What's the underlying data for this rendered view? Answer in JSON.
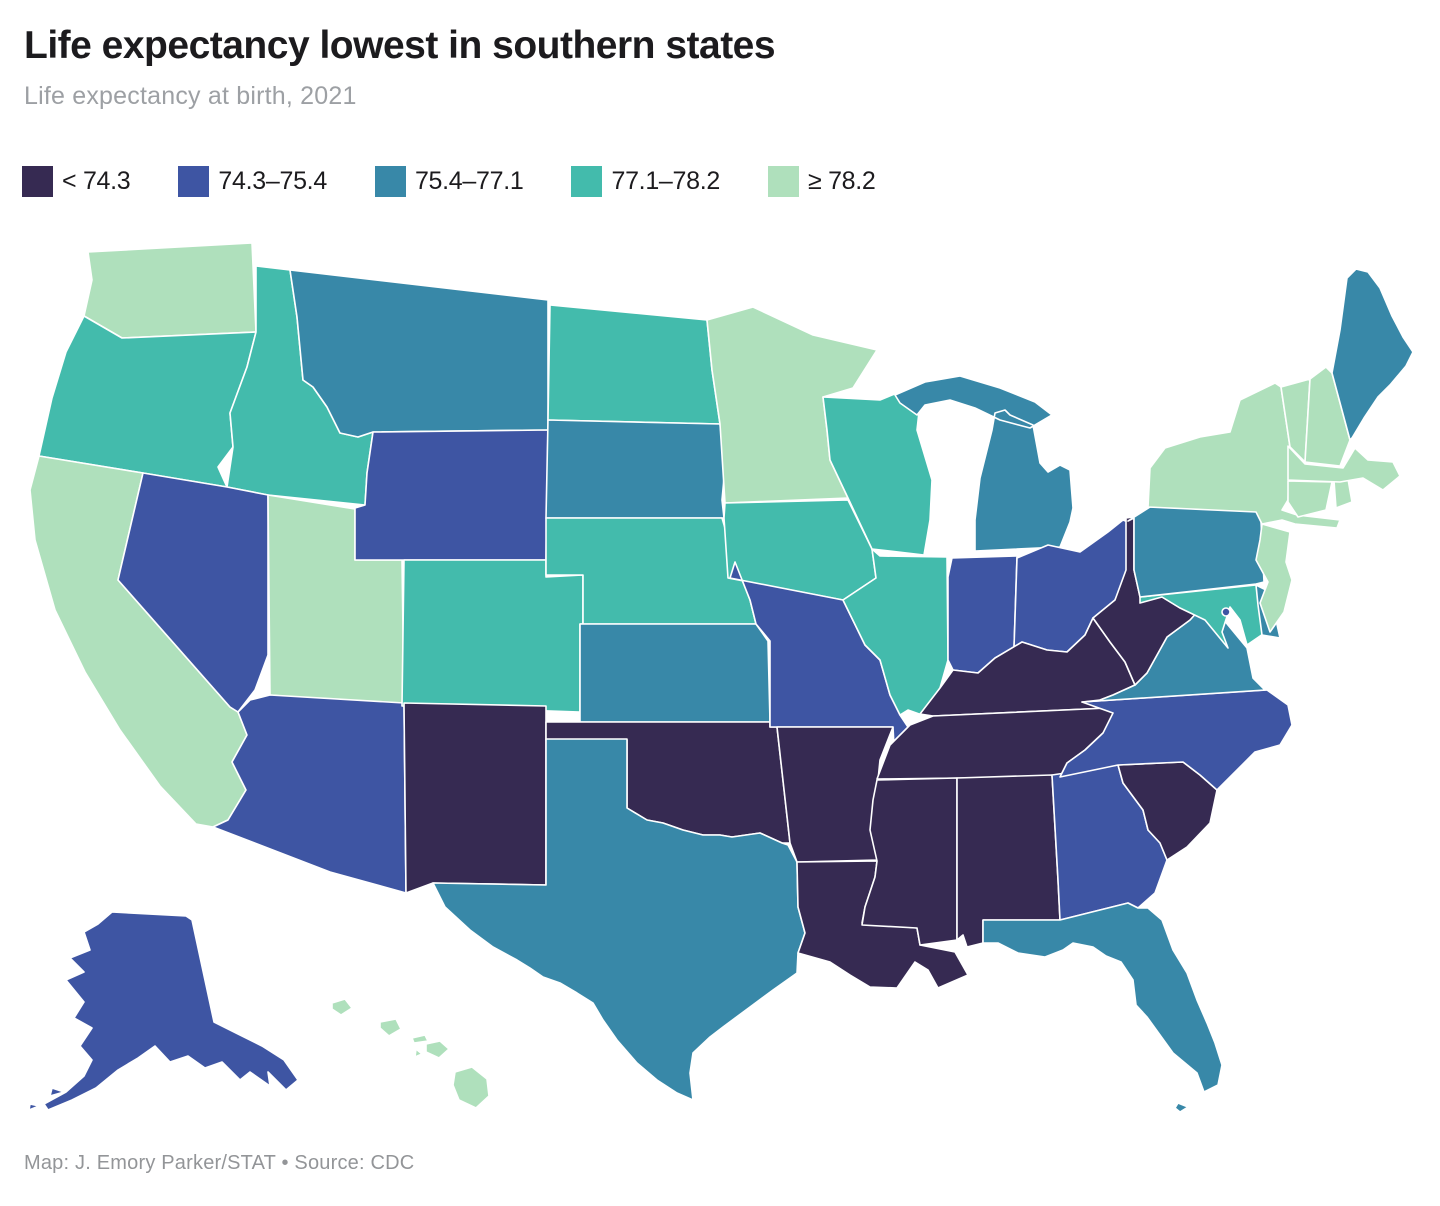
{
  "page": {
    "background": "#ffffff"
  },
  "header": {
    "title": "Life expectancy lowest in southern states",
    "subtitle": "Life expectancy at birth, 2021"
  },
  "footer": {
    "credit": "Map: J. Emory Parker/STAT • Source: CDC"
  },
  "chart_data": {
    "type": "choropleth",
    "region": "United States, 50 states + DC",
    "title": "Life expectancy lowest in southern states",
    "subtitle": "Life expectancy at birth, 2021",
    "unit": "years of life expectancy at birth",
    "source": "CDC",
    "credit": "Map: J. Emory Parker/STAT",
    "legend_position": "top-left, horizontal",
    "legend": [
      {
        "label": "< 74.3",
        "color": "#362a52"
      },
      {
        "label": "74.3–75.4",
        "color": "#3e55a3"
      },
      {
        "label": "75.4–77.1",
        "color": "#3888a8"
      },
      {
        "label": "77.1–78.2",
        "color": "#43bbac"
      },
      {
        "label": "≥ 78.2",
        "color": "#afe0bc"
      }
    ],
    "states": [
      {
        "id": "WA",
        "name": "Washington",
        "bucket": "≥ 78.2"
      },
      {
        "id": "OR",
        "name": "Oregon",
        "bucket": "77.1–78.2"
      },
      {
        "id": "CA",
        "name": "California",
        "bucket": "≥ 78.2"
      },
      {
        "id": "ID",
        "name": "Idaho",
        "bucket": "77.1–78.2"
      },
      {
        "id": "NV",
        "name": "Nevada",
        "bucket": "74.3–75.4"
      },
      {
        "id": "UT",
        "name": "Utah",
        "bucket": "≥ 78.2"
      },
      {
        "id": "AZ",
        "name": "Arizona",
        "bucket": "74.3–75.4"
      },
      {
        "id": "MT",
        "name": "Montana",
        "bucket": "75.4–77.1"
      },
      {
        "id": "WY",
        "name": "Wyoming",
        "bucket": "74.3–75.4"
      },
      {
        "id": "CO",
        "name": "Colorado",
        "bucket": "77.1–78.2"
      },
      {
        "id": "NM",
        "name": "New Mexico",
        "bucket": "< 74.3"
      },
      {
        "id": "ND",
        "name": "North Dakota",
        "bucket": "77.1–78.2"
      },
      {
        "id": "SD",
        "name": "South Dakota",
        "bucket": "75.4–77.1"
      },
      {
        "id": "NE",
        "name": "Nebraska",
        "bucket": "77.1–78.2"
      },
      {
        "id": "KS",
        "name": "Kansas",
        "bucket": "75.4–77.1"
      },
      {
        "id": "OK",
        "name": "Oklahoma",
        "bucket": "< 74.3"
      },
      {
        "id": "TX",
        "name": "Texas",
        "bucket": "75.4–77.1"
      },
      {
        "id": "MN",
        "name": "Minnesota",
        "bucket": "≥ 78.2"
      },
      {
        "id": "IA",
        "name": "Iowa",
        "bucket": "77.1–78.2"
      },
      {
        "id": "MO",
        "name": "Missouri",
        "bucket": "74.3–75.4"
      },
      {
        "id": "AR",
        "name": "Arkansas",
        "bucket": "< 74.3"
      },
      {
        "id": "LA",
        "name": "Louisiana",
        "bucket": "< 74.3"
      },
      {
        "id": "WI",
        "name": "Wisconsin",
        "bucket": "77.1–78.2"
      },
      {
        "id": "IL",
        "name": "Illinois",
        "bucket": "77.1–78.2"
      },
      {
        "id": "MI",
        "name": "Michigan",
        "bucket": "75.4–77.1"
      },
      {
        "id": "IN",
        "name": "Indiana",
        "bucket": "74.3–75.4"
      },
      {
        "id": "OH",
        "name": "Ohio",
        "bucket": "74.3–75.4"
      },
      {
        "id": "KY",
        "name": "Kentucky",
        "bucket": "< 74.3"
      },
      {
        "id": "TN",
        "name": "Tennessee",
        "bucket": "< 74.3"
      },
      {
        "id": "MS",
        "name": "Mississippi",
        "bucket": "< 74.3"
      },
      {
        "id": "AL",
        "name": "Alabama",
        "bucket": "< 74.3"
      },
      {
        "id": "GA",
        "name": "Georgia",
        "bucket": "74.3–75.4"
      },
      {
        "id": "FL",
        "name": "Florida",
        "bucket": "75.4–77.1"
      },
      {
        "id": "SC",
        "name": "South Carolina",
        "bucket": "< 74.3"
      },
      {
        "id": "NC",
        "name": "North Carolina",
        "bucket": "74.3–75.4"
      },
      {
        "id": "VA",
        "name": "Virginia",
        "bucket": "75.4–77.1"
      },
      {
        "id": "WV",
        "name": "West Virginia",
        "bucket": "< 74.3"
      },
      {
        "id": "MD",
        "name": "Maryland",
        "bucket": "77.1–78.2"
      },
      {
        "id": "DE",
        "name": "Delaware",
        "bucket": "75.4–77.1"
      },
      {
        "id": "PA",
        "name": "Pennsylvania",
        "bucket": "75.4–77.1"
      },
      {
        "id": "NJ",
        "name": "New Jersey",
        "bucket": "≥ 78.2"
      },
      {
        "id": "NY",
        "name": "New York",
        "bucket": "≥ 78.2"
      },
      {
        "id": "CT",
        "name": "Connecticut",
        "bucket": "≥ 78.2"
      },
      {
        "id": "RI",
        "name": "Rhode Island",
        "bucket": "≥ 78.2"
      },
      {
        "id": "MA",
        "name": "Massachusetts",
        "bucket": "≥ 78.2"
      },
      {
        "id": "VT",
        "name": "Vermont",
        "bucket": "≥ 78.2"
      },
      {
        "id": "NH",
        "name": "New Hampshire",
        "bucket": "≥ 78.2"
      },
      {
        "id": "ME",
        "name": "Maine",
        "bucket": "75.4–77.1"
      },
      {
        "id": "AK",
        "name": "Alaska",
        "bucket": "74.3–75.4"
      },
      {
        "id": "HI",
        "name": "Hawaii",
        "bucket": "≥ 78.2"
      },
      {
        "id": "DC",
        "name": "District of Columbia",
        "bucket": "74.3–75.4"
      }
    ]
  }
}
